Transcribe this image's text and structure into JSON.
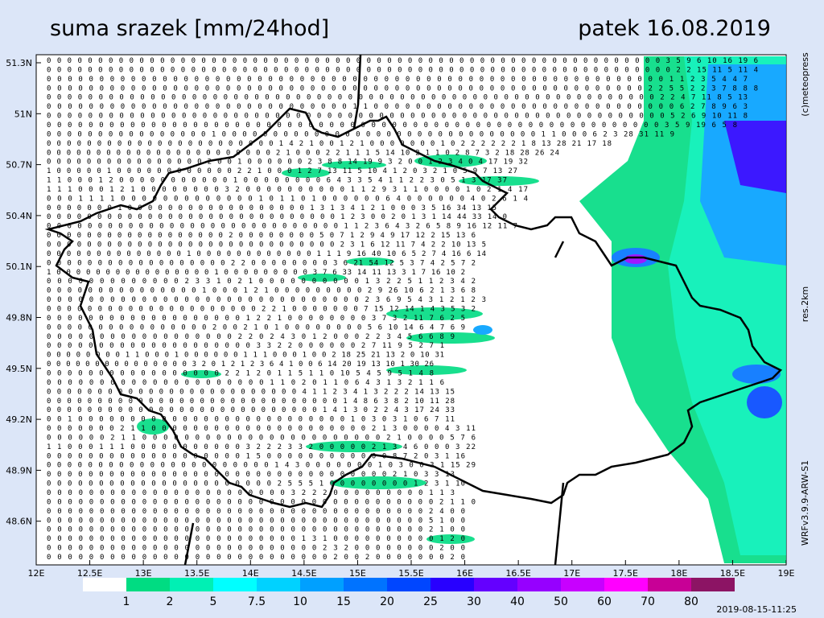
{
  "header": {
    "title": "suma srazek [mm/24hod]",
    "date": "patek 16.08.2019"
  },
  "side_texts": {
    "copyright": "(c)meteopress",
    "resolution": "res.2km",
    "model": "WRFv3.9.9-ARW-S1"
  },
  "timestamp": "2019-08-15-11:25",
  "lat_labels": [
    "51.3N",
    "51N",
    "50.7N",
    "50.4N",
    "50.1N",
    "49.8N",
    "49.5N",
    "49.2N",
    "48.9N",
    "48.6N"
  ],
  "lon_labels": [
    "12E",
    "12.5E",
    "13E",
    "13.5E",
    "14E",
    "14.5E",
    "15E",
    "15.5E",
    "16E",
    "16.5E",
    "17E",
    "17.5E",
    "18E",
    "18.5E",
    "19E"
  ],
  "colorbar": {
    "labels": [
      "1",
      "2",
      "5",
      "7.5",
      "10",
      "15",
      "20",
      "25",
      "30",
      "40",
      "50",
      "60",
      "70",
      "80"
    ],
    "colors": [
      "#ffffff",
      "#00dc82",
      "#00f0b4",
      "#00ffff",
      "#00d2ff",
      "#00a0ff",
      "#0073ff",
      "#0046ff",
      "#2800ff",
      "#6400ff",
      "#9600ff",
      "#c800ff",
      "#ff00ff",
      "#c80096",
      "#8c1464"
    ]
  },
  "grid": {
    "rows": [
      "0 0 0 0 0 0 0 0 0 0 0 0 0 0 0 0 0 0 0 0 0 0 0 0 0 0 0 0 0 0 0 0 0 0 0 0 0 0 0 0 0 0 0 0 0 0 0 0 0 0 0 0 0 0 0 0 0 0 0 0 3 5 9 6 10 16 19 6",
      "0 0 0 0 0 0 0 0 0 0 0 0 0 0 0 0 0 0 0 0 0 0 0 0 0 0 0 0 0 0 0 0 0 0 0 0 0 0 0 0 0 0 0 0 0 0 0 0 0 0 0 0 0 0 0 0 0 0 0 0 0 2 2 15 11 5 11 4",
      "0 0 0 0 0 0 0 0 0 0 0 0 0 0 0 0 0 0 0 0 0 0 0 0 0 0 0 0 0 0 0 0 0 0 0 0 0 0 0 0 0 0 0 0 0 0 0 0 0 0 0 0 0 0 0 0 0 0 0 1 1 2 3 5 4 4 7",
      "0 0 0 0 0 0 0 0 0 0 0 0 0 0 0 0 0 0 0 0 0 0 0 0 0 0 0 0 0 0 0 0 0 0 0 0 0 0 0 0 0 0 0 0 0 0 0 0 0 0 0 0 0 0 0 0 0 2 2 5 5 2 2 3 7 8 8 8",
      "0 0 0 0 0 0 0 0 0 0 0 0 0 0 0 0 0 0 0 0 0 0 0 0 0 0 0 0 0 0 0 0 0 0 0 0 0 0 0 0 0 0 0 0 0 0 0 0 0 0 0 0 0 0 0 0 0 0 0 2 2 4 7 11 8 5 13",
      "0 0 0 0 0 0 0 0 0 0 0 0 0 0 0 0 0 0 0 0 0 0 0 0 0 0 0 0 0 1 1 0 0 0 0 0 0 0 0 0 0 0 0 0 0 0 0 0 0 0 0 0 0 0 0 0 0 0 0 0 6 2 7 8 9 6 3",
      "0 0 0 0 0 0 0 0 0 0 0 0 0 0 0 0 0 0 0 0 0 0 0 0 0 0 0 0 0 0 0 0 0 0 0 0 0 0 0 0 0 0 0 0 0 0 0 0 0 0 0 0 0 0 0 0 0 0 0 0 5 2 6 9 10 11 8",
      "0 0 0 0 0 0 0 0 0 0 0 0 0 0 0 0 0 0 0 0 0 0 0 0 0 0 0 0 0 0 0 0 0 0 0 0 0 0 0 0 0 0 0 0 0 0 0 0 0 0 0 0 0 0 0 0 0 0 0 3 5 9 19 6 5 8",
      "0 0 0 0 0 0 0 0 0 0 0 0 0 0 0 0 1 0 0 0 0 0 0 0 0 0 0 0 0 0 0 0 0 0 0 0 0 0 0 0 0 0 0 0 0 0 0 0 1 1 0 0 0 6 2 3 28 31 11 9",
      "0 0 0 0 0 0 0 0 0 0 0 0 0 0 0 0 0 0 0 0 0 0 0 1 4 2 1 0 0 1 2 1 0 0 0 0 0 0 0 1 0 2 2 2 2 2 2 1 8 13 28 21 17 18",
      "0 0 0 0 0 0 0 0 0 0 0 0 0 0 0 0 0 0 0 0 0 0 0 2 1 0 0 0 2 2 1 1 1 5 14 10 2 1 1 0 2 8 7 3 2 18 28 26 24",
      "0 0 0 0 0 0 0 0 0 0 0 0 0 0 0 0 2 0 0 1 0 0 0 0 0 0 2 3 8 8 14 19 9 3 2 0 0 1 2 3 4 0 4 17 19 32",
      "1 0 0 0 0 0 1 0 0 0 0 0 0 0 0 0 0 0 0 2 2 1 0 0 0 1 2 7 13 11 5 10 4 1 2 0 3 2 1 0 5 9 7 13 27",
      "1 1 0 0 0 1 2 0 0 0 0 0 0 0 0 0 0 0 1 0 0 0 0 0 0 0 0 6 4 3 3 5 4 1 1 2 2 3 0 5 1 3 17 37",
      "1 1 1 0 0 0 1 2 1 0 0 0 0 0 0 0 0 3 2 0 0 0 0 0 0 0 0 0 0 1 1 2 9 3 1 1 0 0 0 0 1 0 2 1 4 17",
      "0 0 0 1 1 1 1 0 0 0 0 0 0 0 0 0 0 0 0 0 1 0 1 1 0 1 0 0 0 0 0 0 6 4 0 0 0 0 0 0 4 0 2 6 1 4",
      "0 0 0 0 0 0 0 1 0 0 0 0 0 0 0 0 0 0 0 0 0 0 0 0 0 0 1 3 1 3 4 1 2 1 0 0 0 3 5 16 34 13 15",
      "0 0 0 0 0 0 0 0 0 0 0 0 0 0 0 0 0 0 0 0 0 0 0 0 0 0 0 0 0 1 2 3 0 0 2 0 1 3 1 14 44 33 14 0",
      "0 0 0 0 0 0 0 0 0 0 0 0 0 0 0 0 0 0 0 0 0 0 0 0 0 0 0 0 0 1 1 2 3 6 4 3 2 6 5 8 9 16 12 11 7",
      "0 0 0 0 0 0 0 0 0 0 0 0 0 0 0 0 0 0 2 0 0 0 0 0 0 0 0 5 0 7 1 2 9 4 9 17 12 2 15 13 6",
      "0 0 0 0 0 0 0 0 0 0 0 0 0 0 0 0 0 0 0 0 0 0 0 0 0 0 0 0 0 2 3 1 6 12 11 7 4 2 2 10 13 5",
      "0 0 0 0 0 0 0 0 0 0 0 0 0 0 1 0 0 0 0 0 0 0 0 0 0 0 0 1 1 1 9 16 40 10 6 5 2 7 4 16 6 14",
      "0 0 0 0 0 0 0 0 0 0 0 0 0 0 0 0 0 0 2 2 0 0 0 0 0 0 0 0 3 6 21 54 12 5 3 7 4 2 5 7 2",
      "1 0 0 0 0 0 0 0 0 0 0 0 0 0 0 0 0 1 0 0 0 0 0 0 0 0 0 3 7 6 33 14 11 13 3 1 7 16 10 2",
      "0 0 0 0 0 0 0 0 0 0 0 0 0 2 3 3 1 0 2 1 0 0 0 0 0 0 0 0 0 0 1 3 2 2 5 1 1 2 3 4 2",
      "0 0 0 0 0 0 0 0 0 0 0 0 0 0 0 1 0 0 0 1 2 1 0 0 0 0 0 0 0 0 0 2 9 26 10 6 2 1 3 6 8",
      "0 0 0 0 0 0 0 0 0 0 0 0 0 0 0 0 0 0 0 0 0 0 0 0 0 0 0 0 0 0 2 3 6 9 5 4 3 1 2 1 2 3",
      "0 0 0 0 0 0 0 0 0 0 0 0 0 0 0 0 0 0 0 0 0 2 2 1 0 0 0 0 0 0 0 7 15 12 14 1 4 3 5 3 2",
      "0 0 0 0 0 0 0 0 0 0 0 0 0 0 0 0 0 0 0 1 2 2 1 0 0 0 0 0 0 0 0 3 7 3 2 11 7 6 2 5",
      "0 0 0 0 0 0 0 0 0 0 0 0 0 0 0 0 2 0 0 2 1 0 1 0 0 0 0 0 0 0 0 5 6 10 14 6 4 7 6 9",
      "0 0 0 0 0 0 0 0 0 0 0 0 0 0 0 0 0 0 2 2 0 2 4 3 0 1 2 0 0 0 2 2 3 4 5 6 6 8 9",
      "0 0 0 0 0 0 0 0 0 0 0 0 0 0 0 0 0 0 0 0 3 3 2 2 0 0 0 0 0 0 2 7 11 9 5 2 7 1",
      "0 0 0 0 0 0 0 0 1 1 0 0 0 1 0 0 0 0 0 0 1 1 1 0 0 0 1 0 0 2 18 25 21 13 2 0 10 31",
      "0 0 0 0 0 0 0 0 0 0 0 0 0 0 0 3 2 0 1 2 1 2 3 6 4 1 0 0 6 14 20 19 13 10 1 30 26",
      "0 0 0 0 0 0 0 0 0 0 0 0 0 0 0 0 0 2 2 1 2 0 1 1 5 1 1 0 10 5 4 5 9 5 1 4 8",
      "0 0 0 0 0 0 0 0 0 0 0 0 0 0 0 0 0 0 0 0 0 1 1 0 2 0 1 1 0 6 4 3 1 3 2 1 1 6",
      "0 0 0 0 0 0 0 0 0 0 0 0 0 0 0 0 0 0 0 0 0 0 0 0 0 4 1 1 2 3 4 1 3 2 2 2 14 13 15",
      "0 0 0 0 0 0 0 0 0 0 0 0 0 0 0 0 0 0 0 0 0 0 0 0 0 0 0 0 0 1 4 8 6 3 8 2 10 11 28",
      "0 0 0 0 0 0 0 0 0 0 0 0 0 0 0 0 0 0 0 0 0 0 0 0 0 0 0 1 4 1 3 0 2 2 4 3 17 24 33",
      "0 0 1 0 0 0 0 0 0 0 0 0 0 0 0 0 0 0 0 0 0 0 0 0 0 0 0 0 0 1 0 3 0 3 1 0 6 7 11",
      "0 0 0 0 0 0 0 2 1 1 0 0 0 0 0 0 0 0 0 0 0 0 0 0 0 0 0 0 0 0 0 2 1 3 0 0 0 0 4 3 11",
      "0 0 0 0 0 0 2 1 1 0 0 0 0 0 0 0 0 0 0 0 0 0 0 0 0 0 0 0 0 0 0 0 2 1 0 0 0 0 5 7 6",
      "1 1 0 0 0 1 1 1 0 0 0 0 0 0 0 0 0 0 0 3 2 2 2 3 3 2 0 0 0 0 0 2 1 3 4 6 0 0 0 3 22",
      "0 0 0 0 0 0 0 0 0 0 0 0 0 0 0 0 0 0 0 1 5 0 0 0 0 0 0 0 0 0 0 0 0 8 7 2 0 3 1 16",
      "0 0 0 0 0 0 0 0 0 0 0 0 0 0 0 0 0 0 0 0 0 0 1 4 3 0 0 0 0 0 0 0 1 0 3 0 0 3 1 15 29",
      "0 0 0 0 0 0 0 0 0 0 0 0 0 0 0 0 0 0 0 0 0 0 0 0 0 0 0 0 0 0 0 0 0 2 1 0 3 3 13",
      "0 0 0 0 0 0 0 0 0 0 0 0 0 0 0 0 0 0 0 0 0 0 2 5 5 5 1 0 0 0 0 0 0 0 0 1 2 3 1 10",
      "0 0 0 0 0 0 0 0 0 0 0 0 0 0 0 0 0 0 0 0 0 0 0 3 2 2 2 0 0 0 0 0 0 0 0 0 1 1 3",
      "0 0 0 0 0 0 0 0 0 0 0 0 0 0 0 0 0 0 0 0 0 0 0 0 0 0 0 0 0 0 0 0 0 0 0 0 0 2 1 1 0",
      "0 0 0 0 0 0 0 0 0 0 0 0 0 0 0 0 0 0 0 0 0 0 0 0 0 0 0 0 0 0 0 0 0 0 0 0 2 4 0 0",
      "0 0 0 0 0 0 0 0 0 0 0 0 0 0 0 0 0 0 0 0 0 0 0 0 0 0 0 0 0 0 0 0 0 0 0 0 5 1 0 0",
      "0 0 0 0 0 0 0 0 0 0 0 0 0 0 0 0 0 0 0 0 0 0 0 0 0 0 0 0 0 0 0 0 0 0 0 0 2 1 0 0",
      "0 0 0 0 0 0 0 0 0 0 0 0 0 0 0 0 0 0 0 0 0 0 0 0 1 3 1 0 0 0 0 0 0 0 0 0 0 1 2 0",
      "0 0 0 0 0 0 0 0 0 0 0 0 0 0 0 0 0 0 0 0 0 0 0 0 0 0 2 3 2 0 0 0 0 0 0 0 0 2 0 0",
      "0 0 0 0 0 0 0 0 0 0 0 0 0 0 0 0 0 0 0 0 0 0 0 0 0 0 0 2 0 0 2 0 0 0 0 0 0 0 2 0"
    ]
  }
}
